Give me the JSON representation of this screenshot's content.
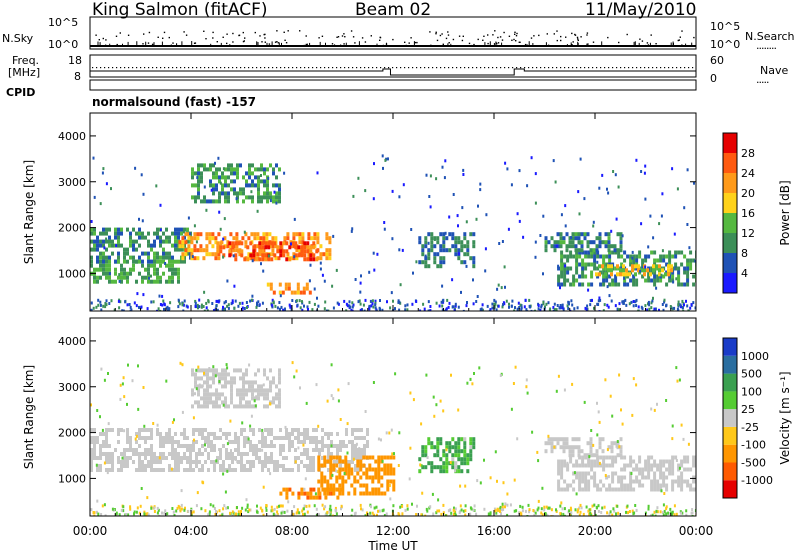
{
  "header": {
    "station": "King Salmon (fitACF)",
    "beam": "Beam 02",
    "date": "11/May/2010"
  },
  "top_panels": {
    "nsky_label": "N.Sky",
    "nsearch_label": "N.Search",
    "count_ticks": [
      "10^5",
      "10^0"
    ],
    "freq_label_line1": "Freq.",
    "freq_label_line2": "[MHz]",
    "freq_ticks": [
      "18",
      "8"
    ],
    "nave_label": "Nave",
    "nave_ticks": [
      "60",
      "0"
    ],
    "cpid_label": "CPID",
    "cpid_value": "normalsound (fast) -157"
  },
  "x_axis": {
    "label": "Time UT",
    "ticks": [
      "00:00",
      "04:00",
      "08:00",
      "12:00",
      "16:00",
      "20:00",
      "00:00"
    ],
    "range_hours": [
      0,
      24
    ]
  },
  "y_axis": {
    "label": "Slant Range [km]",
    "ticks": [
      "1000",
      "2000",
      "3000",
      "4000"
    ],
    "range_km": [
      180,
      4500
    ]
  },
  "power_scale": {
    "label": "Power [dB]",
    "ticks": [
      "4",
      "8",
      "12",
      "16",
      "20",
      "24",
      "28"
    ],
    "colors": [
      "#1a1aff",
      "#1f52b5",
      "#3c8f58",
      "#55b840",
      "#ffd21a",
      "#ff9a1a",
      "#ff5a10",
      "#e60000"
    ]
  },
  "velocity_scale": {
    "label": "Velocity [m s⁻¹]",
    "ticks": [
      "1000",
      "500",
      "100",
      "25",
      "-25",
      "-100",
      "-500",
      "-1000"
    ],
    "colors": [
      "#1a3cc8",
      "#2a6ea0",
      "#3aa050",
      "#55cc33",
      "#c8c8c8",
      "#ffc81a",
      "#ff9600",
      "#ff5a00",
      "#e60000"
    ]
  },
  "chart_data": [
    {
      "type": "heatmap",
      "title": "Power",
      "xlabel": "Time UT",
      "ylabel": "Slant Range [km]",
      "xlim": [
        0,
        24
      ],
      "ylim": [
        180,
        4500
      ],
      "colorbar": "Power [dB]",
      "bands": [
        {
          "t": [
            0.0,
            3.5
          ],
          "r": [
            800,
            1300
          ],
          "level": 12
        },
        {
          "t": [
            0.0,
            4.0
          ],
          "r": [
            1300,
            2000
          ],
          "level": 10
        },
        {
          "t": [
            3.5,
            9.5
          ],
          "r": [
            1300,
            1900
          ],
          "level": 22
        },
        {
          "t": [
            5.0,
            9.0
          ],
          "r": [
            1300,
            1700
          ],
          "level": 26
        },
        {
          "t": [
            4.0,
            7.5
          ],
          "r": [
            2600,
            3400
          ],
          "level": 10
        },
        {
          "t": [
            7.0,
            8.7
          ],
          "r": [
            600,
            800
          ],
          "level": 22
        },
        {
          "t": [
            13.0,
            15.2
          ],
          "r": [
            1200,
            1900
          ],
          "level": 8
        },
        {
          "t": [
            18.5,
            24.0
          ],
          "r": [
            800,
            1500
          ],
          "level": 10
        },
        {
          "t": [
            20.0,
            23.0
          ],
          "r": [
            1000,
            1200
          ],
          "level": 18
        },
        {
          "t": [
            18.0,
            21.0
          ],
          "r": [
            1500,
            1900
          ],
          "level": 9
        }
      ]
    },
    {
      "type": "heatmap",
      "title": "Velocity",
      "xlabel": "Time UT",
      "ylabel": "Slant Range [km]",
      "xlim": [
        0,
        24
      ],
      "ylim": [
        180,
        4500
      ],
      "colorbar": "Velocity [m s⁻¹]",
      "bands": [
        {
          "t": [
            0.0,
            11.0
          ],
          "r": [
            1200,
            2100
          ],
          "vel": 0
        },
        {
          "t": [
            4.0,
            7.5
          ],
          "r": [
            2600,
            3400
          ],
          "vel": 0
        },
        {
          "t": [
            7.5,
            10.0
          ],
          "r": [
            600,
            800
          ],
          "vel": -400
        },
        {
          "t": [
            9.0,
            12.0
          ],
          "r": [
            700,
            1500
          ],
          "vel": -300
        },
        {
          "t": [
            13.0,
            15.2
          ],
          "r": [
            1200,
            1900
          ],
          "vel": 150
        },
        {
          "t": [
            18.5,
            24.0
          ],
          "r": [
            800,
            1500
          ],
          "vel": 0
        },
        {
          "t": [
            18.0,
            21.0
          ],
          "r": [
            1500,
            1900
          ],
          "vel": 0
        }
      ]
    }
  ]
}
